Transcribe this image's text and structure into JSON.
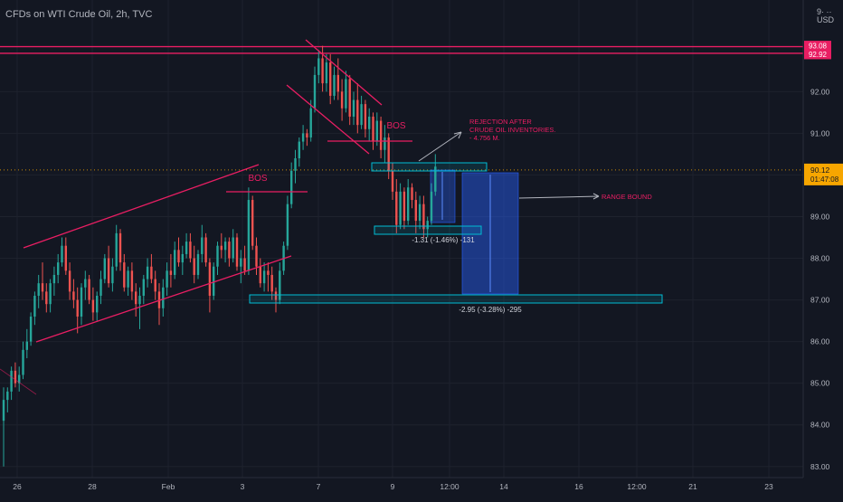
{
  "header": {
    "title": "CFDs on WTI Crude Oil, 2h, TVC",
    "currency_top": "9· ··",
    "currency": "USD"
  },
  "colors": {
    "background": "#131722",
    "up": "#26a69a",
    "down": "#ef5350",
    "pattern": "#e91e63",
    "target_box": "#2962ff",
    "label_box": "#00bcd4",
    "axis_text": "#b2b5be"
  },
  "price_axis": {
    "ticks": [
      "92.00",
      "91.00",
      "90.00",
      "89.00",
      "88.00",
      "87.00",
      "86.00",
      "85.00",
      "84.00",
      "83.00"
    ]
  },
  "time_axis": {
    "ticks": [
      "26",
      "28",
      "Feb",
      "3",
      "7",
      "9",
      "12:00",
      "14",
      "16",
      "12:00",
      "21",
      "23"
    ]
  },
  "price_labels": [
    {
      "value": "93.08",
      "color": "#e91e63"
    },
    {
      "value": "92.92",
      "color": "#e91e63"
    }
  ],
  "current_price": {
    "value": "90.12",
    "countdown": "01:47:08",
    "color": "#f7a600"
  },
  "annotations": {
    "bos_upper": "BOS",
    "bos_lower": "BOS",
    "rejection": [
      "REJECTION AFTER",
      "CRUDE OIL INVENTORIES.",
      "- 4.756 M."
    ],
    "range_bound": "RANGE BOUND",
    "measure_small": "-1.31 (-1.46%) -131",
    "measure_large": "-2.95 (-3.28%) -295"
  },
  "chart_data": {
    "type": "candlestick",
    "symbol": "CFDs on WTI Crude Oil",
    "interval": "2h",
    "source": "TVC",
    "price_range": [
      82.8,
      94.2
    ],
    "horizontal_levels": [
      93.08,
      92.92
    ],
    "current_price": 90.12,
    "drawn_targets": [
      {
        "label": "-1.31 (-1.46%) -131",
        "from": 90.12,
        "to": 88.81
      },
      {
        "label": "-2.95 (-3.28%) -295",
        "from": 89.88,
        "to": 86.93
      }
    ],
    "candles": [
      [
        84.1,
        84.9,
        83.0,
        84.6
      ],
      [
        84.6,
        84.9,
        84.3,
        84.8
      ],
      [
        84.8,
        85.4,
        84.6,
        85.3
      ],
      [
        85.3,
        85.5,
        84.9,
        85.0
      ],
      [
        85.0,
        85.4,
        84.8,
        85.2
      ],
      [
        85.2,
        86.0,
        85.1,
        85.8
      ],
      [
        85.8,
        86.3,
        85.6,
        86.0
      ],
      [
        86.0,
        86.7,
        85.9,
        86.6
      ],
      [
        86.6,
        87.2,
        86.4,
        87.1
      ],
      [
        87.1,
        87.6,
        86.8,
        87.4
      ],
      [
        87.4,
        87.9,
        87.0,
        87.2
      ],
      [
        87.2,
        87.4,
        86.7,
        86.9
      ],
      [
        86.9,
        87.5,
        86.7,
        87.4
      ],
      [
        87.4,
        87.8,
        87.1,
        87.6
      ],
      [
        87.6,
        88.1,
        87.4,
        87.9
      ],
      [
        87.9,
        88.5,
        87.8,
        88.3
      ],
      [
        88.3,
        88.5,
        87.6,
        87.7
      ],
      [
        87.7,
        87.9,
        87.0,
        87.2
      ],
      [
        87.2,
        87.5,
        86.8,
        87.0
      ],
      [
        87.0,
        87.3,
        86.2,
        86.6
      ],
      [
        86.6,
        87.4,
        86.4,
        87.3
      ],
      [
        87.3,
        87.7,
        87.0,
        87.5
      ],
      [
        87.5,
        87.6,
        86.9,
        87.0
      ],
      [
        87.0,
        87.3,
        86.5,
        86.7
      ],
      [
        86.7,
        87.2,
        86.5,
        87.1
      ],
      [
        87.1,
        87.7,
        86.9,
        87.5
      ],
      [
        87.5,
        88.1,
        87.4,
        88.0
      ],
      [
        88.0,
        88.3,
        87.3,
        87.4
      ],
      [
        87.4,
        88.0,
        87.2,
        87.8
      ],
      [
        87.8,
        88.8,
        87.7,
        88.6
      ],
      [
        88.6,
        88.7,
        87.7,
        87.9
      ],
      [
        87.9,
        88.1,
        87.2,
        87.3
      ],
      [
        87.3,
        87.8,
        87.1,
        87.7
      ],
      [
        87.7,
        87.9,
        87.0,
        87.2
      ],
      [
        87.2,
        87.4,
        86.6,
        86.9
      ],
      [
        86.9,
        87.3,
        86.3,
        87.1
      ],
      [
        87.1,
        87.6,
        86.9,
        87.5
      ],
      [
        87.5,
        88.0,
        87.3,
        87.8
      ],
      [
        87.8,
        88.1,
        87.4,
        87.5
      ],
      [
        87.5,
        87.7,
        87.0,
        87.2
      ],
      [
        87.2,
        87.4,
        86.4,
        86.8
      ],
      [
        86.8,
        87.5,
        86.6,
        87.3
      ],
      [
        87.3,
        87.9,
        87.1,
        87.7
      ],
      [
        87.7,
        88.1,
        87.3,
        87.6
      ],
      [
        87.6,
        88.4,
        87.5,
        88.2
      ],
      [
        88.2,
        88.5,
        87.8,
        87.9
      ],
      [
        87.9,
        88.3,
        87.6,
        88.1
      ],
      [
        88.1,
        88.6,
        88.0,
        88.4
      ],
      [
        88.4,
        88.6,
        87.9,
        88.0
      ],
      [
        88.0,
        88.3,
        87.4,
        87.6
      ],
      [
        87.6,
        88.2,
        87.5,
        88.1
      ],
      [
        88.1,
        88.8,
        87.9,
        88.5
      ],
      [
        88.5,
        88.6,
        87.8,
        87.9
      ],
      [
        87.9,
        88.0,
        86.7,
        87.1
      ],
      [
        87.1,
        87.9,
        87.0,
        87.8
      ],
      [
        87.8,
        88.4,
        87.6,
        88.3
      ],
      [
        88.3,
        88.6,
        88.0,
        88.2
      ],
      [
        88.2,
        88.5,
        87.9,
        88.4
      ],
      [
        88.4,
        88.5,
        87.8,
        88.0
      ],
      [
        88.0,
        88.7,
        87.9,
        88.5
      ],
      [
        88.5,
        88.6,
        87.7,
        87.8
      ],
      [
        87.8,
        88.2,
        87.4,
        88.0
      ],
      [
        88.0,
        88.3,
        87.6,
        87.7
      ],
      [
        87.7,
        89.7,
        87.6,
        89.4
      ],
      [
        89.4,
        89.5,
        88.2,
        88.3
      ],
      [
        88.3,
        88.5,
        87.6,
        87.8
      ],
      [
        87.8,
        88.0,
        87.3,
        87.4
      ],
      [
        87.4,
        87.9,
        87.2,
        87.7
      ],
      [
        87.7,
        87.9,
        87.2,
        87.6
      ],
      [
        87.6,
        87.8,
        87.0,
        87.2
      ],
      [
        87.2,
        87.3,
        86.7,
        87.0
      ],
      [
        87.0,
        87.9,
        86.9,
        87.7
      ],
      [
        87.7,
        88.4,
        87.6,
        88.3
      ],
      [
        88.3,
        89.5,
        88.2,
        89.3
      ],
      [
        89.3,
        90.3,
        89.2,
        90.1
      ],
      [
        90.1,
        90.6,
        89.8,
        90.4
      ],
      [
        90.4,
        90.9,
        90.2,
        90.8
      ],
      [
        90.8,
        91.2,
        90.6,
        91.0
      ],
      [
        91.0,
        91.1,
        90.7,
        90.9
      ],
      [
        90.9,
        91.8,
        90.8,
        91.6
      ],
      [
        91.6,
        92.6,
        91.5,
        92.4
      ],
      [
        92.4,
        93.0,
        92.2,
        92.8
      ],
      [
        92.8,
        93.1,
        92.0,
        92.2
      ],
      [
        92.2,
        92.9,
        92.0,
        92.7
      ],
      [
        92.7,
        92.9,
        91.7,
        91.9
      ],
      [
        91.9,
        92.6,
        91.8,
        92.4
      ],
      [
        92.4,
        92.8,
        91.8,
        92.0
      ],
      [
        92.0,
        92.3,
        91.3,
        91.6
      ],
      [
        91.6,
        92.5,
        91.5,
        92.3
      ],
      [
        92.3,
        92.4,
        91.2,
        91.4
      ],
      [
        91.4,
        92.0,
        91.2,
        91.8
      ],
      [
        91.8,
        92.2,
        91.0,
        91.2
      ],
      [
        91.2,
        91.9,
        91.1,
        91.7
      ],
      [
        91.7,
        91.8,
        90.9,
        91.1
      ],
      [
        91.1,
        91.6,
        90.8,
        91.4
      ],
      [
        91.4,
        91.5,
        90.6,
        90.8
      ],
      [
        90.8,
        91.5,
        90.7,
        91.3
      ],
      [
        91.3,
        91.4,
        90.4,
        90.6
      ],
      [
        90.6,
        91.2,
        90.3,
        90.9
      ],
      [
        90.9,
        91.0,
        89.9,
        90.1
      ],
      [
        90.1,
        90.3,
        89.4,
        89.6
      ],
      [
        89.6,
        89.9,
        88.6,
        88.8
      ],
      [
        88.8,
        89.8,
        88.7,
        89.6
      ],
      [
        89.6,
        89.7,
        88.7,
        88.9
      ],
      [
        88.9,
        89.9,
        88.8,
        89.7
      ],
      [
        89.7,
        89.8,
        89.2,
        89.4
      ],
      [
        89.4,
        89.6,
        88.6,
        88.9
      ],
      [
        88.9,
        89.5,
        88.7,
        89.3
      ],
      [
        89.3,
        89.5,
        88.5,
        88.7
      ],
      [
        88.7,
        89.0,
        88.5,
        88.9
      ],
      [
        88.9,
        89.8,
        88.8,
        89.6
      ],
      [
        89.6,
        90.5,
        89.5,
        90.2
      ]
    ]
  }
}
